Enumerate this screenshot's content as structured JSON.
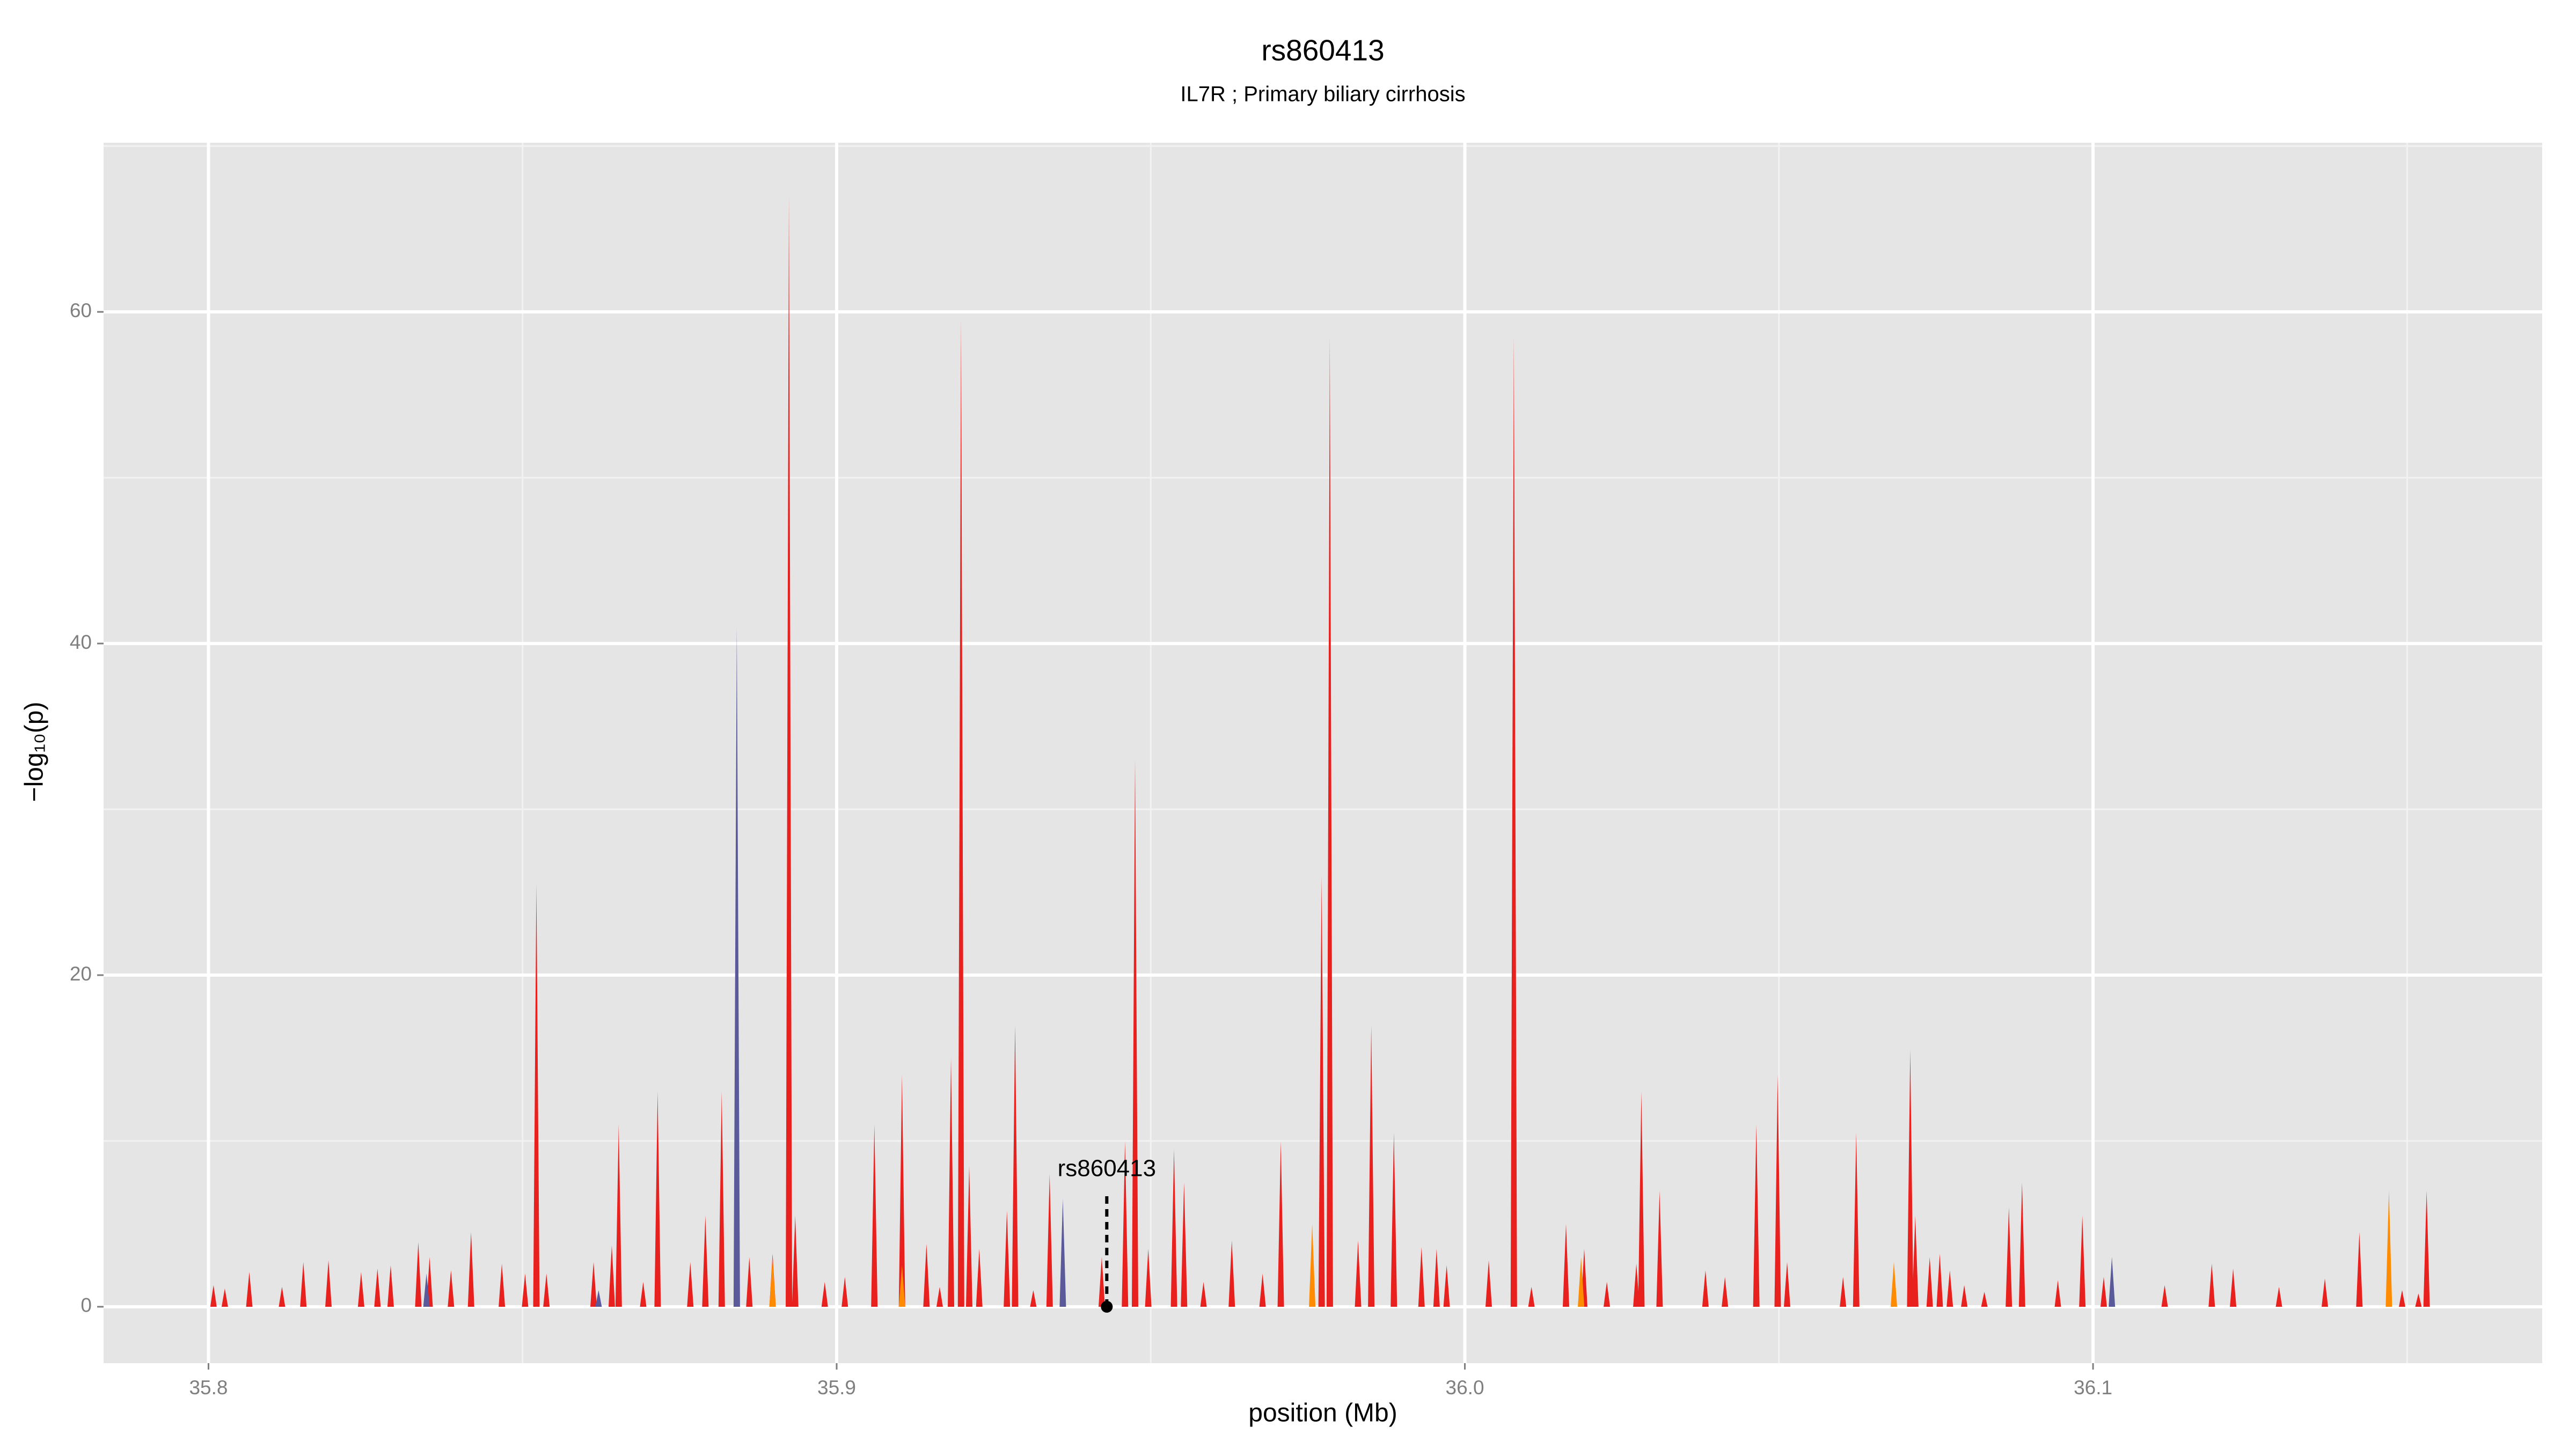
{
  "chart_data": {
    "type": "spike",
    "title": "rs860413",
    "subtitle": "IL7R ; Primary biliary cirrhosis",
    "xlabel": "position (Mb)",
    "ylabel": "−log₁₀(p)",
    "xlim": [
      35.7833,
      36.1715
    ],
    "xticks": [
      35.8,
      35.9,
      {
        "value": 36,
        "label": "36.0"
      },
      36.1
    ],
    "ylim": [
      -3.4,
      70.2
    ],
    "yticks": [
      0,
      20,
      40,
      60
    ],
    "grid": true,
    "series": [
      {
        "color": "#e8201e",
        "x": [
          35.8008,
          35.8026,
          35.8065,
          35.8117,
          35.8151,
          35.8191,
          35.8243,
          35.8269,
          35.829,
          35.8334,
          35.8352,
          35.8386,
          35.8418,
          35.8467,
          35.8504,
          35.8522,
          35.8538,
          35.8613,
          35.8642,
          35.8653,
          35.8692,
          35.8715,
          35.8767,
          35.8791,
          35.8817,
          35.8861,
          35.8898,
          35.8924,
          35.8934,
          35.8981,
          35.9013,
          35.906,
          35.9104,
          35.9143,
          35.9164,
          35.9182,
          35.9198,
          35.9211,
          35.9227,
          35.9271,
          35.9284,
          35.9313,
          35.9339,
          35.9422,
          35.9459,
          35.9475,
          35.9496,
          35.9537,
          35.9553,
          35.9584,
          35.9629,
          35.9678,
          35.9707,
          35.9772,
          35.9785,
          35.983,
          35.9851,
          35.9887,
          35.9931,
          35.9955,
          35.9971,
          36.0038,
          36.0078,
          36.0106,
          36.0161,
          36.019,
          36.0226,
          36.0273,
          36.0281,
          36.031,
          36.0383,
          36.0414,
          36.0464,
          36.0498,
          36.0513,
          36.0602,
          36.0623,
          36.0709,
          36.0717,
          36.074,
          36.0756,
          36.0772,
          36.0795,
          36.0827,
          36.0866,
          36.0887,
          36.0944,
          36.0983,
          36.1017,
          36.1114,
          36.1189,
          36.1223,
          36.1296,
          36.1369,
          36.1424,
          36.1492,
          36.1518,
          36.1531
        ],
        "values": [
          1.3,
          1.1,
          2.1,
          1.2,
          2.7,
          2.8,
          2.1,
          2.3,
          2.5,
          3.9,
          3,
          2.2,
          4.5,
          2.6,
          2,
          25.5,
          2,
          2.7,
          3.7,
          11,
          1.5,
          13,
          2.7,
          5.5,
          13,
          3,
          3.2,
          67,
          5.5,
          1.5,
          1.8,
          11,
          14,
          3.8,
          1.2,
          15,
          59.5,
          8.5,
          3.5,
          5.8,
          17,
          1,
          8,
          3,
          10,
          33,
          3.5,
          9.5,
          7.5,
          1.5,
          4,
          2,
          10,
          26,
          58.5,
          4,
          17,
          10.5,
          3.6,
          3.5,
          2.5,
          2.8,
          58.5,
          1.2,
          5,
          3.5,
          1.5,
          2.6,
          13,
          7,
          2.2,
          1.8,
          11,
          14,
          2.7,
          1.8,
          10.5,
          15.5,
          5.5,
          3,
          3.2,
          2.2,
          1.3,
          0.9,
          6,
          7.5,
          1.6,
          5.5,
          1.8,
          1.3,
          2.6,
          2.3,
          1.2,
          1.7,
          4.5,
          1,
          0.8,
          7
        ]
      },
      {
        "color": "#ff8c00",
        "x": [
          35.8898,
          35.9104,
          35.9757,
          36.0185,
          36.0683,
          36.1471
        ],
        "values": [
          3,
          2.5,
          5,
          3,
          2.7,
          7
        ]
      },
      {
        "color": "#5a5a9a",
        "x": [
          35.8347,
          35.8621,
          35.8841,
          35.936,
          36.103
        ],
        "values": [
          2,
          1,
          41,
          6.5,
          3
        ]
      }
    ],
    "annotation": {
      "text": "rs860413",
      "x": 35.943,
      "y": 0
    }
  }
}
